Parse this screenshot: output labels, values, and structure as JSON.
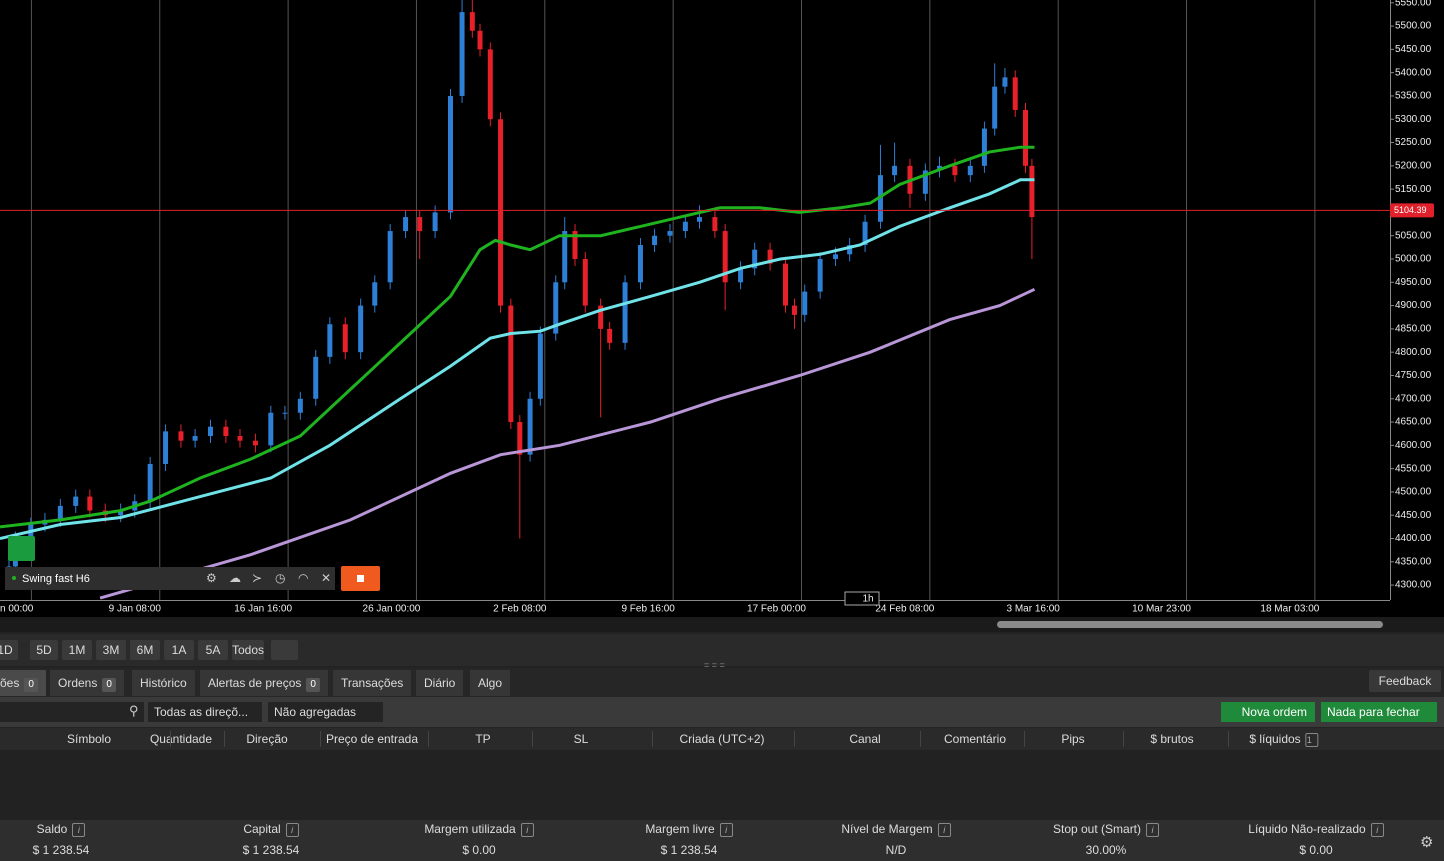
{
  "chart_data": {
    "type": "candlestick",
    "up_color": "#2e7fd6",
    "down_color": "#e8202a",
    "grid": true,
    "x": [
      0.02,
      0.07,
      0.19,
      0.3,
      0.42,
      0.54,
      0.65,
      0.77,
      0.89,
      1.0,
      1.12,
      1.24,
      1.36,
      1.47,
      1.59,
      1.71,
      1.82,
      1.94,
      2.06,
      2.17,
      2.29,
      2.41,
      2.52,
      2.64,
      2.76,
      2.87,
      2.99,
      3.11,
      3.22,
      3.34,
      3.46,
      3.55,
      3.63,
      3.69,
      3.77,
      3.85,
      3.93,
      4.0,
      4.08,
      4.16,
      4.28,
      4.35,
      4.43,
      4.51,
      4.63,
      4.7,
      4.82,
      4.94,
      5.05,
      5.17,
      5.29,
      5.4,
      5.52,
      5.6,
      5.72,
      5.83,
      5.95,
      6.07,
      6.14,
      6.22,
      6.34,
      6.46,
      6.57,
      6.69,
      6.81,
      6.92,
      7.04,
      7.16,
      7.27,
      7.39,
      7.51,
      7.62,
      7.7,
      7.78,
      7.86,
      7.94,
      7.99
    ],
    "open": [
      4320,
      4340,
      4400,
      4430,
      4440,
      4470,
      4490,
      4460,
      4450,
      4460,
      4480,
      4560,
      4630,
      4610,
      4620,
      4640,
      4620,
      4610,
      4600,
      4670,
      4670,
      4700,
      4790,
      4860,
      4800,
      4900,
      4950,
      5060,
      5090,
      5060,
      5100,
      5350,
      5530,
      5490,
      5450,
      5300,
      4900,
      4650,
      4580,
      4700,
      4840,
      4950,
      5060,
      5000,
      4900,
      4850,
      4820,
      4950,
      5030,
      5050,
      5060,
      5080,
      5090,
      5060,
      4950,
      4980,
      5020,
      4990,
      4900,
      4880,
      4930,
      5000,
      5010,
      5030,
      5080,
      5180,
      5200,
      5140,
      5190,
      5200,
      5180,
      5200,
      5280,
      5370,
      5390,
      5320,
      5200
    ],
    "high": [
      4355,
      4415,
      4445,
      4455,
      4485,
      4505,
      4505,
      4475,
      4475,
      4495,
      4575,
      4645,
      4645,
      4635,
      4655,
      4655,
      4635,
      4625,
      4685,
      4685,
      4715,
      4805,
      4875,
      4875,
      4915,
      4965,
      5075,
      5105,
      5105,
      5115,
      5365,
      5556,
      5556,
      5505,
      5465,
      5315,
      4915,
      4665,
      4715,
      4855,
      4965,
      5090,
      5075,
      5015,
      4915,
      4865,
      4965,
      5045,
      5065,
      5075,
      5095,
      5115,
      5105,
      5075,
      4995,
      5035,
      5035,
      5005,
      4915,
      4945,
      5015,
      5025,
      5045,
      5095,
      5245,
      5250,
      5215,
      5205,
      5220,
      5215,
      5215,
      5295,
      5420,
      5410,
      5405,
      5335,
      5215
    ],
    "low": [
      4305,
      4325,
      4385,
      4415,
      4425,
      4455,
      4445,
      4435,
      4435,
      4445,
      4465,
      4545,
      4595,
      4595,
      4605,
      4605,
      4595,
      4585,
      4585,
      4655,
      4655,
      4685,
      4775,
      4785,
      4785,
      4885,
      4935,
      5045,
      5000,
      5045,
      5085,
      5335,
      5475,
      5435,
      5285,
      4885,
      4635,
      4400,
      4565,
      4685,
      4825,
      4935,
      4985,
      4885,
      4660,
      4805,
      4805,
      4935,
      5015,
      5035,
      5045,
      5065,
      5045,
      4890,
      4935,
      4965,
      4975,
      4885,
      4850,
      4865,
      4915,
      4985,
      4995,
      5015,
      5065,
      5165,
      5110,
      5125,
      5175,
      5165,
      5165,
      5185,
      5265,
      5355,
      5305,
      5185,
      5000
    ],
    "close": [
      4340,
      4400,
      4430,
      4440,
      4470,
      4490,
      4460,
      4450,
      4460,
      4480,
      4560,
      4630,
      4610,
      4620,
      4640,
      4620,
      4610,
      4600,
      4670,
      4670,
      4700,
      4790,
      4860,
      4800,
      4900,
      4950,
      5060,
      5090,
      5060,
      5100,
      5350,
      5530,
      5490,
      5450,
      5300,
      4900,
      4650,
      4580,
      4700,
      4840,
      4950,
      5060,
      5000,
      4900,
      4850,
      4820,
      4950,
      5030,
      5050,
      5060,
      5080,
      5090,
      5060,
      4950,
      4980,
      5020,
      4990,
      4900,
      4880,
      4930,
      5000,
      5010,
      5030,
      5080,
      5180,
      5200,
      5140,
      5190,
      5200,
      5180,
      5200,
      5280,
      5370,
      5390,
      5320,
      5200,
      5090
    ],
    "moving_averages": [
      {
        "color": "#1fb31f",
        "x": [
          -0.05,
          0.42,
          0.89,
          1.12,
          1.51,
          1.9,
          2.29,
          2.68,
          3.07,
          3.46,
          3.69,
          3.81,
          3.93,
          4.08,
          4.31,
          4.63,
          4.94,
          5.25,
          5.56,
          5.87,
          6.18,
          6.5,
          6.73,
          6.96,
          7.35,
          7.66,
          7.9,
          8.01
        ],
        "values": [
          4425,
          4440,
          4460,
          4480,
          4530,
          4570,
          4620,
          4720,
          4820,
          4920,
          5020,
          5040,
          5030,
          5020,
          5050,
          5050,
          5070,
          5090,
          5110,
          5110,
          5100,
          5110,
          5120,
          5160,
          5200,
          5230,
          5240,
          5240
        ]
      },
      {
        "color": "#6fe3e8",
        "x": [
          -0.05,
          0.42,
          0.89,
          1.51,
          2.06,
          2.52,
          3.07,
          3.46,
          3.77,
          3.93,
          4.16,
          4.31,
          4.63,
          5.02,
          5.4,
          5.72,
          6.03,
          6.34,
          6.65,
          6.96,
          7.35,
          7.66,
          7.9,
          8.01
        ],
        "values": [
          4400,
          4430,
          4445,
          4490,
          4530,
          4600,
          4700,
          4770,
          4830,
          4840,
          4845,
          4860,
          4890,
          4920,
          4950,
          4980,
          5000,
          5010,
          5030,
          5070,
          5110,
          5140,
          5170,
          5170
        ]
      },
      {
        "color": "#b896d8",
        "x": [
          0.73,
          1.9,
          2.68,
          3.46,
          3.85,
          4.31,
          5.02,
          5.56,
          6.18,
          6.73,
          7.35,
          7.74,
          8.01
        ],
        "values": [
          4272,
          4365,
          4440,
          4540,
          4580,
          4600,
          4650,
          4700,
          4750,
          4800,
          4870,
          4900,
          4935
        ]
      }
    ],
    "current_price": 5104.39,
    "current_price_color": "#e0202a",
    "xlim": [
      -0.05,
      10.78
    ],
    "xticks": [
      {
        "value": 0,
        "label": "n 00:00"
      },
      {
        "value": 1,
        "label": "9 Jan 08:00"
      },
      {
        "value": 2,
        "label": "16 Jan 16:00"
      },
      {
        "value": 3,
        "label": "26 Jan 00:00"
      },
      {
        "value": 4,
        "label": "2 Feb 08:00"
      },
      {
        "value": 5,
        "label": "9 Feb 16:00"
      },
      {
        "value": 6,
        "label": "17 Feb 00:00"
      },
      {
        "value": 7,
        "label": "24 Feb 08:00"
      },
      {
        "value": 8,
        "label": "3 Mar 16:00"
      },
      {
        "value": 9,
        "label": "10 Mar 23:00"
      },
      {
        "value": 10,
        "label": "18 Mar 03:00"
      }
    ],
    "ylim": [
      4268,
      5556
    ],
    "yticks": [
      {
        "value": 4300,
        "label": "4300.00"
      },
      {
        "value": 4350,
        "label": "4350.00"
      },
      {
        "value": 4400,
        "label": "4400.00"
      },
      {
        "value": 4450,
        "label": "4450.00"
      },
      {
        "value": 4500,
        "label": "4500.00"
      },
      {
        "value": 4550,
        "label": "4550.00"
      },
      {
        "value": 4600,
        "label": "4600.00"
      },
      {
        "value": 4650,
        "label": "4650.00"
      },
      {
        "value": 4700,
        "label": "4700.00"
      },
      {
        "value": 4750,
        "label": "4750.00"
      },
      {
        "value": 4800,
        "label": "4800.00"
      },
      {
        "value": 4850,
        "label": "4850.00"
      },
      {
        "value": 4900,
        "label": "4900.00"
      },
      {
        "value": 4950,
        "label": "4950.00"
      },
      {
        "value": 5000,
        "label": "5000.00"
      },
      {
        "value": 5050,
        "label": "5050.00"
      },
      {
        "value": 5100,
        "label": "5100.00"
      },
      {
        "value": 5150,
        "label": "5150.00"
      },
      {
        "value": 5200,
        "label": "5200.00"
      },
      {
        "value": 5250,
        "label": "5250.00"
      },
      {
        "value": 5300,
        "label": "5300.00"
      },
      {
        "value": 5350,
        "label": "5350.00"
      },
      {
        "value": 5400,
        "label": "5400.00"
      },
      {
        "value": 5450,
        "label": "5450.00"
      },
      {
        "value": 5500,
        "label": "5500.00"
      },
      {
        "value": 5550,
        "label": "5550.00"
      }
    ],
    "strategy": "Swing fast H6",
    "timeframe": "1h"
  },
  "ui": {
    "periods": [
      "1D",
      "5D",
      "1M",
      "3M",
      "6M",
      "1A",
      "5A",
      "Todos"
    ],
    "tabs": [
      {
        "label": "ões",
        "count": 0
      },
      {
        "label": "Ordens",
        "count": 0
      },
      {
        "label": "Histórico"
      },
      {
        "label": "Alertas de preços",
        "count": 0
      },
      {
        "label": "Transações"
      },
      {
        "label": "Diário"
      },
      {
        "label": "Algo"
      }
    ],
    "feedback": "Feedback",
    "filters": [
      "Todas as direçõ...",
      "Não agregadas"
    ],
    "buttons": [
      "Nova ordem",
      "Nada para fechar"
    ],
    "columns": [
      "Símbolo",
      "Quantidade",
      "Direção",
      "Preço de entrada",
      "TP",
      "SL",
      "Criada (UTC+2)",
      "Canal",
      "Comentário",
      "Pips",
      "$ brutos",
      "$ líquidos"
    ],
    "sort_index": 1,
    "stats": [
      {
        "label": "Saldo",
        "value": "$ 1 238.54"
      },
      {
        "label": "Capital",
        "value": "$ 1 238.54"
      },
      {
        "label": "Margem utilizada",
        "value": "$ 0.00"
      },
      {
        "label": "Margem livre",
        "value": "$ 1 238.54"
      },
      {
        "label": "Nível de Margem",
        "value": "N/D"
      },
      {
        "label": "Stop out (Smart)",
        "value": "30.00%"
      },
      {
        "label": "Líquido Não-realizado",
        "value": "$ 0.00"
      }
    ]
  }
}
